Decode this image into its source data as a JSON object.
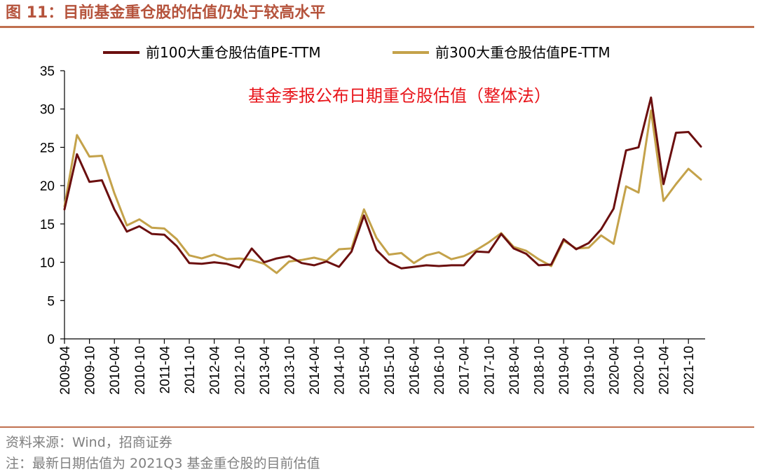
{
  "figure": {
    "title": "图 11：目前基金重仓股的估值仍处于较高水平",
    "source": "资料来源：Wind，招商证券",
    "note": "注：最新日期估值为 2021Q3 基金重仓股的目前估值"
  },
  "colors": {
    "title": "#b5533c",
    "rule": "#c0704f",
    "series1": "#6b0f0f",
    "series2": "#c4a24a",
    "annotation": "#e8141a"
  },
  "chart_data": {
    "type": "line",
    "title": "",
    "annotation": "基金季报公布日期重仓股估值（整体法）",
    "xlabel": "",
    "ylabel": "",
    "ylim": [
      0,
      35
    ],
    "yticks": [
      0,
      5,
      10,
      15,
      20,
      25,
      30,
      35
    ],
    "grid": false,
    "legend_position": "top",
    "x": [
      "2009-04",
      "2009-07",
      "2009-10",
      "2010-01",
      "2010-04",
      "2010-07",
      "2010-10",
      "2011-01",
      "2011-04",
      "2011-07",
      "2011-10",
      "2012-01",
      "2012-04",
      "2012-07",
      "2012-10",
      "2013-01",
      "2013-04",
      "2013-07",
      "2013-10",
      "2014-01",
      "2014-04",
      "2014-07",
      "2014-10",
      "2015-01",
      "2015-04",
      "2015-07",
      "2015-10",
      "2016-01",
      "2016-04",
      "2016-07",
      "2016-10",
      "2017-01",
      "2017-04",
      "2017-07",
      "2017-10",
      "2018-01",
      "2018-04",
      "2018-07",
      "2018-10",
      "2019-01",
      "2019-04",
      "2019-07",
      "2019-10",
      "2020-01",
      "2020-04",
      "2020-07",
      "2020-10",
      "2021-01",
      "2021-04",
      "2021-07",
      "2021-10",
      "2022-01"
    ],
    "xtick_labels": [
      "2009-04",
      "2009-10",
      "2010-04",
      "2010-10",
      "2011-04",
      "2011-10",
      "2012-04",
      "2012-10",
      "2013-04",
      "2013-10",
      "2014-04",
      "2014-10",
      "2015-04",
      "2015-10",
      "2016-04",
      "2016-10",
      "2017-04",
      "2017-10",
      "2018-04",
      "2018-10",
      "2019-04",
      "2019-10",
      "2020-04",
      "2020-10",
      "2021-04",
      "2021-10"
    ],
    "series": [
      {
        "name": "前100大重仓股估值PE-TTM",
        "values": [
          16.9,
          24.1,
          20.5,
          20.7,
          16.9,
          14.0,
          14.7,
          13.7,
          13.6,
          12.1,
          9.9,
          9.8,
          10.0,
          9.8,
          9.3,
          11.8,
          10.0,
          10.5,
          10.8,
          9.9,
          9.6,
          10.1,
          9.4,
          11.4,
          16.1,
          11.6,
          10.0,
          9.2,
          9.4,
          9.6,
          9.5,
          9.6,
          9.6,
          11.4,
          11.3,
          13.7,
          11.8,
          11.1,
          9.6,
          9.7,
          13.0,
          11.7,
          12.5,
          14.3,
          17.0,
          24.6,
          25.0,
          31.5,
          20.2,
          26.9,
          27.0,
          25.1
        ]
      },
      {
        "name": "前300大重仓股估值PE-TTM",
        "values": [
          17.3,
          26.6,
          23.8,
          23.9,
          19.0,
          14.8,
          15.6,
          14.5,
          14.4,
          13.0,
          10.9,
          10.5,
          11.0,
          10.4,
          10.5,
          10.3,
          9.8,
          8.6,
          10.1,
          10.3,
          10.6,
          10.2,
          11.7,
          11.8,
          16.9,
          13.2,
          11.0,
          11.2,
          9.9,
          10.9,
          11.3,
          10.4,
          10.8,
          11.6,
          12.6,
          13.8,
          12.0,
          11.5,
          10.4,
          9.5,
          12.8,
          11.8,
          11.9,
          13.5,
          12.4,
          19.9,
          19.1,
          29.8,
          18.0,
          20.2,
          22.2,
          20.8
        ]
      }
    ]
  }
}
